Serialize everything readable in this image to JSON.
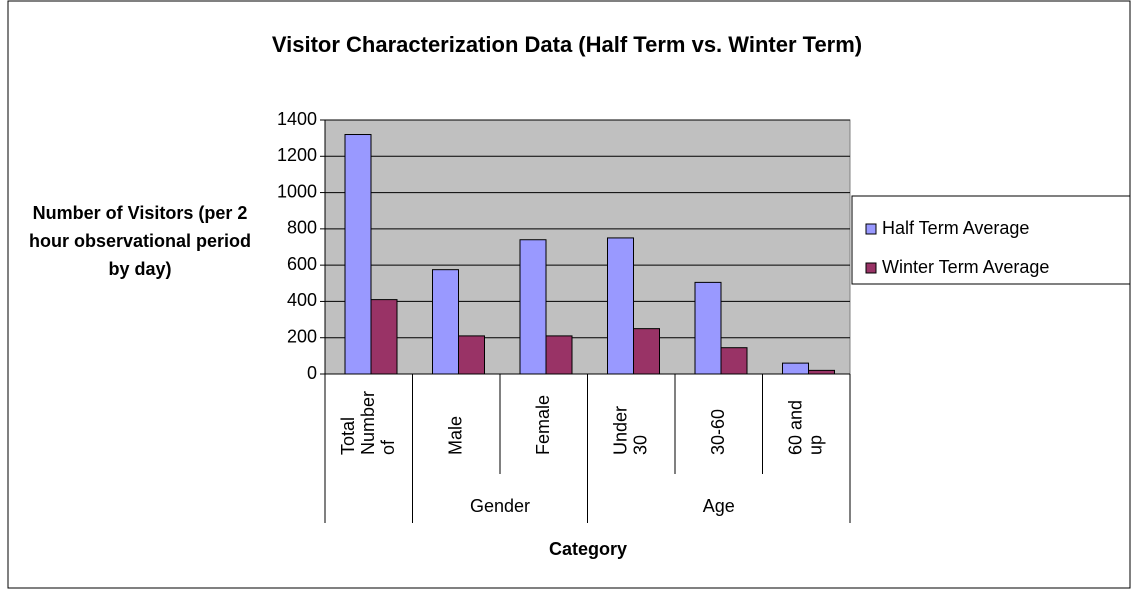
{
  "chart_data": {
    "type": "bar",
    "title": "Visitor Characterization Data (Half Term vs. Winter Term)",
    "x_label": "Category",
    "y_label": "Number of Visitors (per 2 hour observational period by day)",
    "categories": [
      "Total Number of",
      "Male",
      "Female",
      "Under 30",
      "30-60",
      "60 and up"
    ],
    "category_groups": [
      null,
      "Gender",
      "Gender",
      "Age",
      "Age",
      "Age"
    ],
    "series": [
      {
        "name": "Half Term Average",
        "color": "#9999ff",
        "values": [
          1320,
          575,
          740,
          750,
          505,
          60
        ]
      },
      {
        "name": "Winter Term Average",
        "color": "#993366",
        "values": [
          410,
          210,
          210,
          250,
          145,
          20
        ]
      }
    ],
    "ylim": [
      0,
      1400
    ],
    "yticks": [
      0,
      200,
      400,
      600,
      800,
      1000,
      1200,
      1400
    ],
    "grid": true,
    "legend": "right"
  }
}
